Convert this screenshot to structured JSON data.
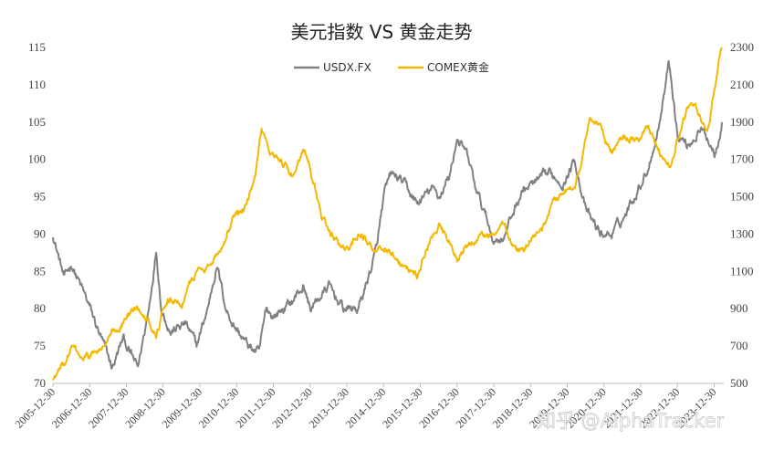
{
  "watermark": "知乎 @AlphaTracker",
  "chart_data": {
    "type": "line",
    "title": "美元指数 VS 黄金走势",
    "legend_position": "top-center",
    "grid": false,
    "x_tick_labels": [
      "2005-12-30",
      "2006-12-30",
      "2007-12-30",
      "2008-12-30",
      "2009-12-30",
      "2010-12-30",
      "2011-12-30",
      "2012-12-30",
      "2013-12-30",
      "2014-12-30",
      "2015-12-30",
      "2016-12-30",
      "2017-12-30",
      "2018-12-30",
      "2019-12-30",
      "2020-12-30",
      "2021-12-30",
      "2022-12-30",
      "2023-12-30"
    ],
    "y_left": {
      "ticks": [
        70,
        75,
        80,
        85,
        90,
        95,
        100,
        105,
        110,
        115
      ],
      "ylim": [
        70,
        115
      ]
    },
    "y_right": {
      "ticks": [
        500,
        700,
        900,
        1100,
        1300,
        1500,
        1700,
        1900,
        2100,
        2300
      ],
      "ylim": [
        500,
        2300
      ]
    },
    "series": [
      {
        "name": "USDX.FX",
        "axis": "left",
        "color": "#808080",
        "x": [
          2005.99,
          2006.3,
          2006.5,
          2006.75,
          2007.0,
          2007.3,
          2007.6,
          2007.9,
          2008.2,
          2008.3,
          2008.6,
          2008.8,
          2008.95,
          2009.2,
          2009.6,
          2009.9,
          2010.2,
          2010.45,
          2010.7,
          2010.9,
          2011.3,
          2011.6,
          2011.8,
          2012.0,
          2012.5,
          2012.8,
          2013.0,
          2013.5,
          2013.9,
          2014.3,
          2014.5,
          2014.8,
          2015.0,
          2015.2,
          2015.5,
          2015.9,
          2016.3,
          2016.5,
          2016.8,
          2016.99,
          2017.3,
          2017.5,
          2017.8,
          2018.0,
          2018.3,
          2018.6,
          2018.8,
          2019.2,
          2019.5,
          2019.9,
          2020.2,
          2020.5,
          2020.9,
          2021.2,
          2021.5,
          2021.9,
          2022.2,
          2022.5,
          2022.75,
          2022.8,
          2023.0,
          2023.3,
          2023.6,
          2023.8,
          2024.0,
          2024.2
        ],
        "y": [
          90,
          84,
          86,
          83,
          80,
          76,
          72,
          76,
          73,
          72,
          80,
          88,
          80,
          77,
          78,
          75,
          80,
          86,
          80,
          78,
          75,
          74,
          80,
          79,
          81,
          83,
          80,
          83,
          80,
          80,
          83,
          88,
          95,
          98,
          97,
          94,
          96,
          95,
          98,
          103,
          100,
          96,
          92,
          89,
          90,
          94,
          96,
          97,
          98,
          97,
          100,
          93,
          90,
          90,
          92,
          96,
          99,
          105,
          113,
          112,
          103,
          102,
          104,
          103,
          101,
          105
        ]
      },
      {
        "name": "COMEX黄金",
        "axis": "right",
        "color": "#F5B800",
        "x": [
          2005.99,
          2006.3,
          2006.5,
          2006.8,
          2006.99,
          2007.3,
          2007.6,
          2007.9,
          2008.2,
          2008.5,
          2008.8,
          2008.95,
          2009.2,
          2009.5,
          2009.9,
          2010.3,
          2010.6,
          2010.9,
          2011.2,
          2011.5,
          2011.67,
          2011.9,
          2012.2,
          2012.5,
          2012.8,
          2012.99,
          2013.3,
          2013.5,
          2013.99,
          2014.3,
          2014.6,
          2014.99,
          2015.3,
          2015.6,
          2015.9,
          2016.2,
          2016.5,
          2016.8,
          2016.99,
          2017.4,
          2017.7,
          2017.99,
          2018.3,
          2018.6,
          2018.8,
          2018.99,
          2019.3,
          2019.6,
          2019.9,
          2020.2,
          2020.4,
          2020.6,
          2020.9,
          2021.2,
          2021.5,
          2021.9,
          2022.2,
          2022.5,
          2022.8,
          2022.99,
          2023.3,
          2023.6,
          2023.8,
          2023.99,
          2024.2
        ],
        "y": [
          520,
          600,
          700,
          620,
          650,
          680,
          760,
          830,
          900,
          880,
          760,
          860,
          950,
          930,
          1100,
          1150,
          1240,
          1400,
          1420,
          1600,
          1850,
          1700,
          1700,
          1620,
          1760,
          1680,
          1400,
          1300,
          1220,
          1300,
          1250,
          1200,
          1190,
          1120,
          1080,
          1250,
          1330,
          1250,
          1160,
          1260,
          1280,
          1300,
          1350,
          1200,
          1230,
          1280,
          1300,
          1480,
          1520,
          1580,
          1700,
          1940,
          1860,
          1750,
          1800,
          1810,
          1850,
          1740,
          1640,
          1800,
          1990,
          1940,
          1820,
          2070,
          2300
        ]
      }
    ]
  }
}
